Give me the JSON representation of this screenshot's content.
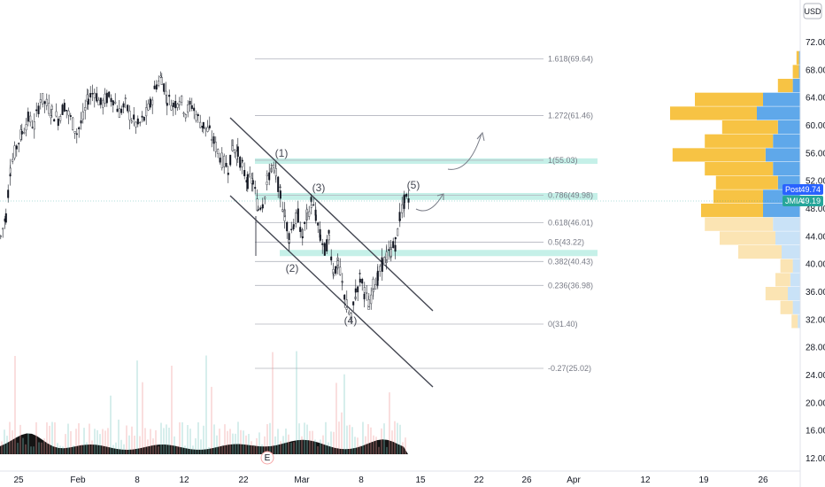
{
  "currency": "USD",
  "chart_data": {
    "type": "candlestick",
    "y_ticks": [
      "72.00",
      "68.00",
      "64.00",
      "60.00",
      "56.00",
      "52.00",
      "48.00",
      "44.00",
      "40.00",
      "36.00",
      "32.00",
      "28.00",
      "24.00",
      "20.00",
      "16.00",
      "12.00"
    ],
    "x_ticks": [
      "25",
      "Feb",
      "8",
      "12",
      "22",
      "Mar",
      "8",
      "15",
      "22",
      "26",
      "Apr",
      "12",
      "19",
      "26"
    ],
    "fib_levels": [
      {
        "label": "1.618(69.64)",
        "value": 69.64
      },
      {
        "label": "1.272(61.46)",
        "value": 61.46
      },
      {
        "label": "1(55.03)",
        "value": 55.03
      },
      {
        "label": "0.786(49.98)",
        "value": 49.98
      },
      {
        "label": "0.618(46.01)",
        "value": 46.01
      },
      {
        "label": "0.5(43.22)",
        "value": 43.22
      },
      {
        "label": "0.382(40.43)",
        "value": 40.43
      },
      {
        "label": "0.236(36.98)",
        "value": 36.98
      },
      {
        "label": "0(31.40)",
        "value": 31.4
      },
      {
        "label": "-0.27(25.02)",
        "value": 25.02
      }
    ],
    "wave_labels": [
      "(1)",
      "(2)",
      "(3)",
      "(4)",
      "(5)"
    ],
    "price_tags": [
      {
        "label": "Post",
        "value": "49.74",
        "color": "#2962ff"
      },
      {
        "label": "JMIA",
        "value": "49.19",
        "color": "#26a69a"
      }
    ],
    "earnings_marker": "E",
    "zones": [
      {
        "from": 54.5,
        "to": 55.3
      },
      {
        "from": 49.3,
        "to": 50.3
      },
      {
        "from": 41.2,
        "to": 42.1
      }
    ],
    "price_series": [
      [
        0,
        44
      ],
      [
        6,
        47
      ],
      [
        11,
        54
      ],
      [
        18,
        57
      ],
      [
        24,
        59
      ],
      [
        31,
        61
      ],
      [
        38,
        60
      ],
      [
        45,
        64
      ],
      [
        52,
        63
      ],
      [
        58,
        62
      ],
      [
        65,
        61
      ],
      [
        72,
        63
      ],
      [
        79,
        61
      ],
      [
        86,
        59
      ],
      [
        93,
        61
      ],
      [
        99,
        64
      ],
      [
        106,
        65
      ],
      [
        113,
        63
      ],
      [
        120,
        64
      ],
      [
        127,
        64
      ],
      [
        134,
        62
      ],
      [
        141,
        63
      ],
      [
        148,
        61
      ],
      [
        155,
        60
      ],
      [
        162,
        61
      ],
      [
        169,
        63
      ],
      [
        176,
        66
      ],
      [
        182,
        67
      ],
      [
        188,
        64
      ],
      [
        195,
        63
      ],
      [
        202,
        64
      ],
      [
        209,
        62
      ],
      [
        216,
        63
      ],
      [
        223,
        61
      ],
      [
        229,
        60
      ],
      [
        236,
        59
      ],
      [
        243,
        57
      ],
      [
        250,
        55
      ],
      [
        257,
        54
      ],
      [
        262,
        57
      ],
      [
        268,
        56
      ],
      [
        273,
        54
      ],
      [
        279,
        52
      ],
      [
        285,
        52
      ],
      [
        291,
        48
      ],
      [
        296,
        49
      ],
      [
        301,
        52
      ],
      [
        306,
        54
      ],
      [
        311,
        53
      ],
      [
        316,
        50
      ],
      [
        321,
        47
      ],
      [
        326,
        44
      ],
      [
        331,
        46
      ],
      [
        336,
        47
      ],
      [
        341,
        44
      ],
      [
        346,
        47
      ],
      [
        351,
        49
      ],
      [
        356,
        47
      ],
      [
        361,
        44
      ],
      [
        366,
        42
      ],
      [
        371,
        44
      ],
      [
        376,
        39
      ],
      [
        381,
        40
      ],
      [
        386,
        37
      ],
      [
        391,
        34
      ],
      [
        396,
        32
      ],
      [
        401,
        36
      ],
      [
        406,
        38
      ],
      [
        411,
        36
      ],
      [
        416,
        34
      ],
      [
        421,
        37
      ],
      [
        426,
        38
      ],
      [
        431,
        40
      ],
      [
        436,
        41
      ],
      [
        441,
        42
      ],
      [
        446,
        43
      ],
      [
        451,
        47
      ],
      [
        456,
        49
      ],
      [
        461,
        49.5
      ]
    ],
    "volume_profile": [
      {
        "price": 70,
        "up": 0.02,
        "down": 0.01
      },
      {
        "price": 68,
        "up": 0.05,
        "down": 0.01
      },
      {
        "price": 66,
        "up": 0.12,
        "down": 0.06
      },
      {
        "price": 64,
        "up": 0.55,
        "down": 0.3
      },
      {
        "price": 62,
        "up": 0.7,
        "down": 0.35
      },
      {
        "price": 60,
        "up": 0.45,
        "down": 0.18
      },
      {
        "price": 58,
        "up": 0.55,
        "down": 0.22
      },
      {
        "price": 56,
        "up": 0.75,
        "down": 0.28
      },
      {
        "price": 54,
        "up": 0.55,
        "down": 0.22
      },
      {
        "price": 52,
        "up": 0.5,
        "down": 0.18
      },
      {
        "price": 50,
        "up": 0.4,
        "down": 0.3
      },
      {
        "price": 48,
        "up": 0.5,
        "down": 0.3
      },
      {
        "price": 46,
        "up": 0.55,
        "down": 0.22
      },
      {
        "price": 44,
        "up": 0.45,
        "down": 0.2
      },
      {
        "price": 42,
        "up": 0.35,
        "down": 0.15
      },
      {
        "price": 40,
        "up": 0.1,
        "down": 0.06
      },
      {
        "price": 38,
        "up": 0.12,
        "down": 0.08
      },
      {
        "price": 36,
        "up": 0.18,
        "down": 0.1
      },
      {
        "price": 34,
        "up": 0.1,
        "down": 0.06
      },
      {
        "price": 32,
        "up": 0.05,
        "down": 0.02
      }
    ],
    "colors": {
      "up": "#26a69a",
      "down": "#ef5350",
      "zone": "#b2ebe0",
      "vp_up": "#f7c344",
      "vp_down": "#5fa8ea"
    }
  }
}
